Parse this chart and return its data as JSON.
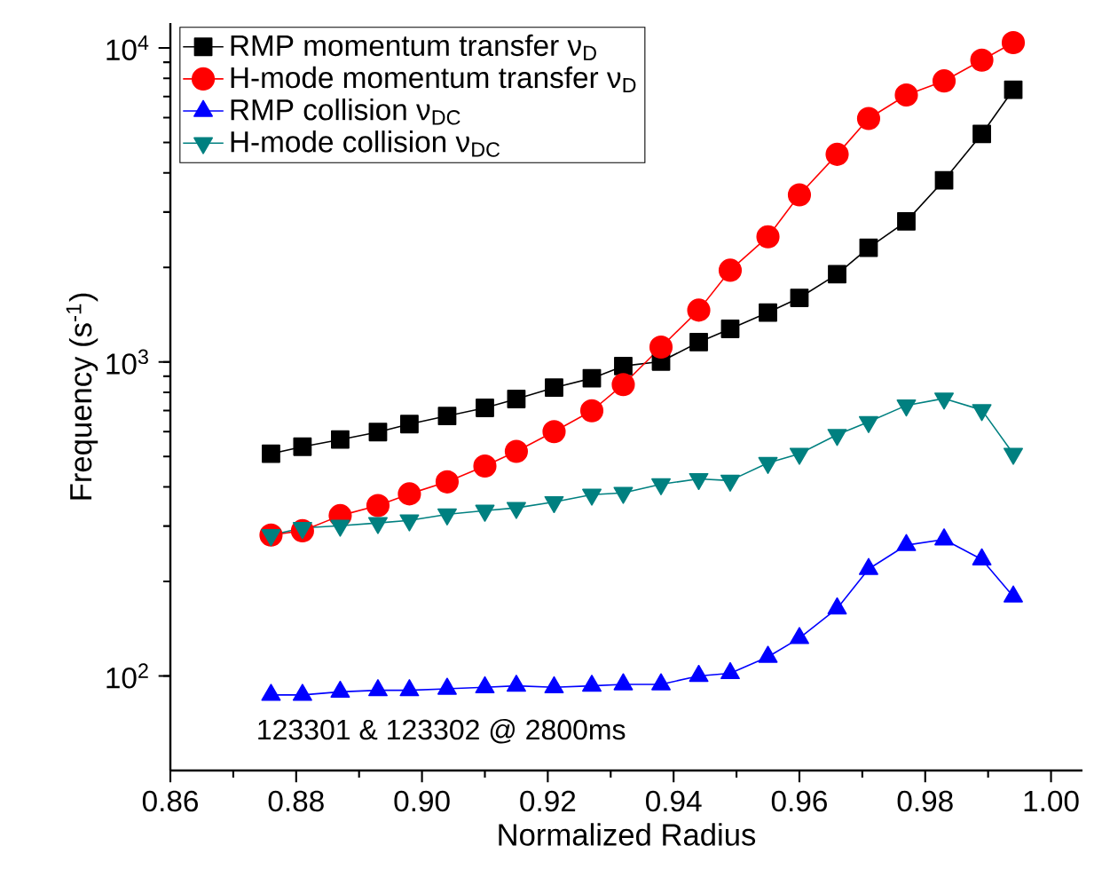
{
  "chart_data": {
    "type": "line",
    "xlabel": "Normalized Radius",
    "ylabel": "Frequency (s$^{-1}$)",
    "x": [
      0.876,
      0.881,
      0.887,
      0.893,
      0.898,
      0.904,
      0.91,
      0.915,
      0.921,
      0.927,
      0.932,
      0.938,
      0.944,
      0.949,
      0.955,
      0.96,
      0.966,
      0.971,
      0.977,
      0.983,
      0.989,
      0.994
    ],
    "series": [
      {
        "name": "RMP momentum transfer ν$_{D}$",
        "color": "#000000",
        "marker": "square",
        "values": [
          510,
          537,
          566,
          598,
          634,
          673,
          714,
          762,
          828,
          887,
          970,
          1003,
          1156,
          1274,
          1437,
          1600,
          1903,
          2309,
          2803,
          3790,
          5320,
          7360
        ]
      },
      {
        "name": "H-mode momentum transfer ν$_{D}$",
        "color": "#ff0000",
        "marker": "circle",
        "values": [
          281,
          290,
          324,
          349,
          380,
          415,
          466,
          519,
          600,
          699,
          847,
          1115,
          1462,
          1959,
          2504,
          3405,
          4582,
          5958,
          7080,
          7850,
          9140,
          10400
        ]
      },
      {
        "name": "RMP collision ν$_{DC}$",
        "color": "#0000ff",
        "marker": "triangle",
        "values": [
          87,
          87,
          89,
          90,
          90,
          91,
          92,
          93,
          92,
          93,
          94,
          94,
          100,
          102,
          115,
          132,
          164,
          219,
          261,
          272,
          235,
          179
        ]
      },
      {
        "name": "H-mode collision ν$_{DC}$",
        "color": "#008080",
        "marker": "triangle-down",
        "values": [
          281,
          296,
          301,
          307,
          313,
          327,
          336,
          343,
          358,
          378,
          383,
          408,
          424,
          419,
          477,
          510,
          586,
          644,
          727,
          765,
          703,
          510
        ]
      }
    ],
    "log": "y",
    "xlim": [
      0.86,
      1.005
    ],
    "xticks": [
      {
        "value": 0.86,
        "label": "0.86"
      },
      {
        "value": 0.88,
        "label": "0.88"
      },
      {
        "value": 0.9,
        "label": "0.90"
      },
      {
        "value": 0.92,
        "label": "0.92"
      },
      {
        "value": 0.94,
        "label": "0.94"
      },
      {
        "value": 0.96,
        "label": "0.96"
      },
      {
        "value": 0.98,
        "label": "0.98"
      },
      {
        "value": 1.0,
        "label": "1.00"
      }
    ],
    "ylim": [
      50,
      12000
    ],
    "yticks": [
      {
        "value": 100,
        "label": "10$^{2}$"
      },
      {
        "value": 1000,
        "label": "10$^{3}$"
      },
      {
        "value": 10000,
        "label": "10$^{4}$"
      }
    ],
    "grid": false,
    "legend": "top left",
    "line_style": "solid",
    "annotations": [
      "123301 & 123302 @ 2800ms"
    ]
  }
}
